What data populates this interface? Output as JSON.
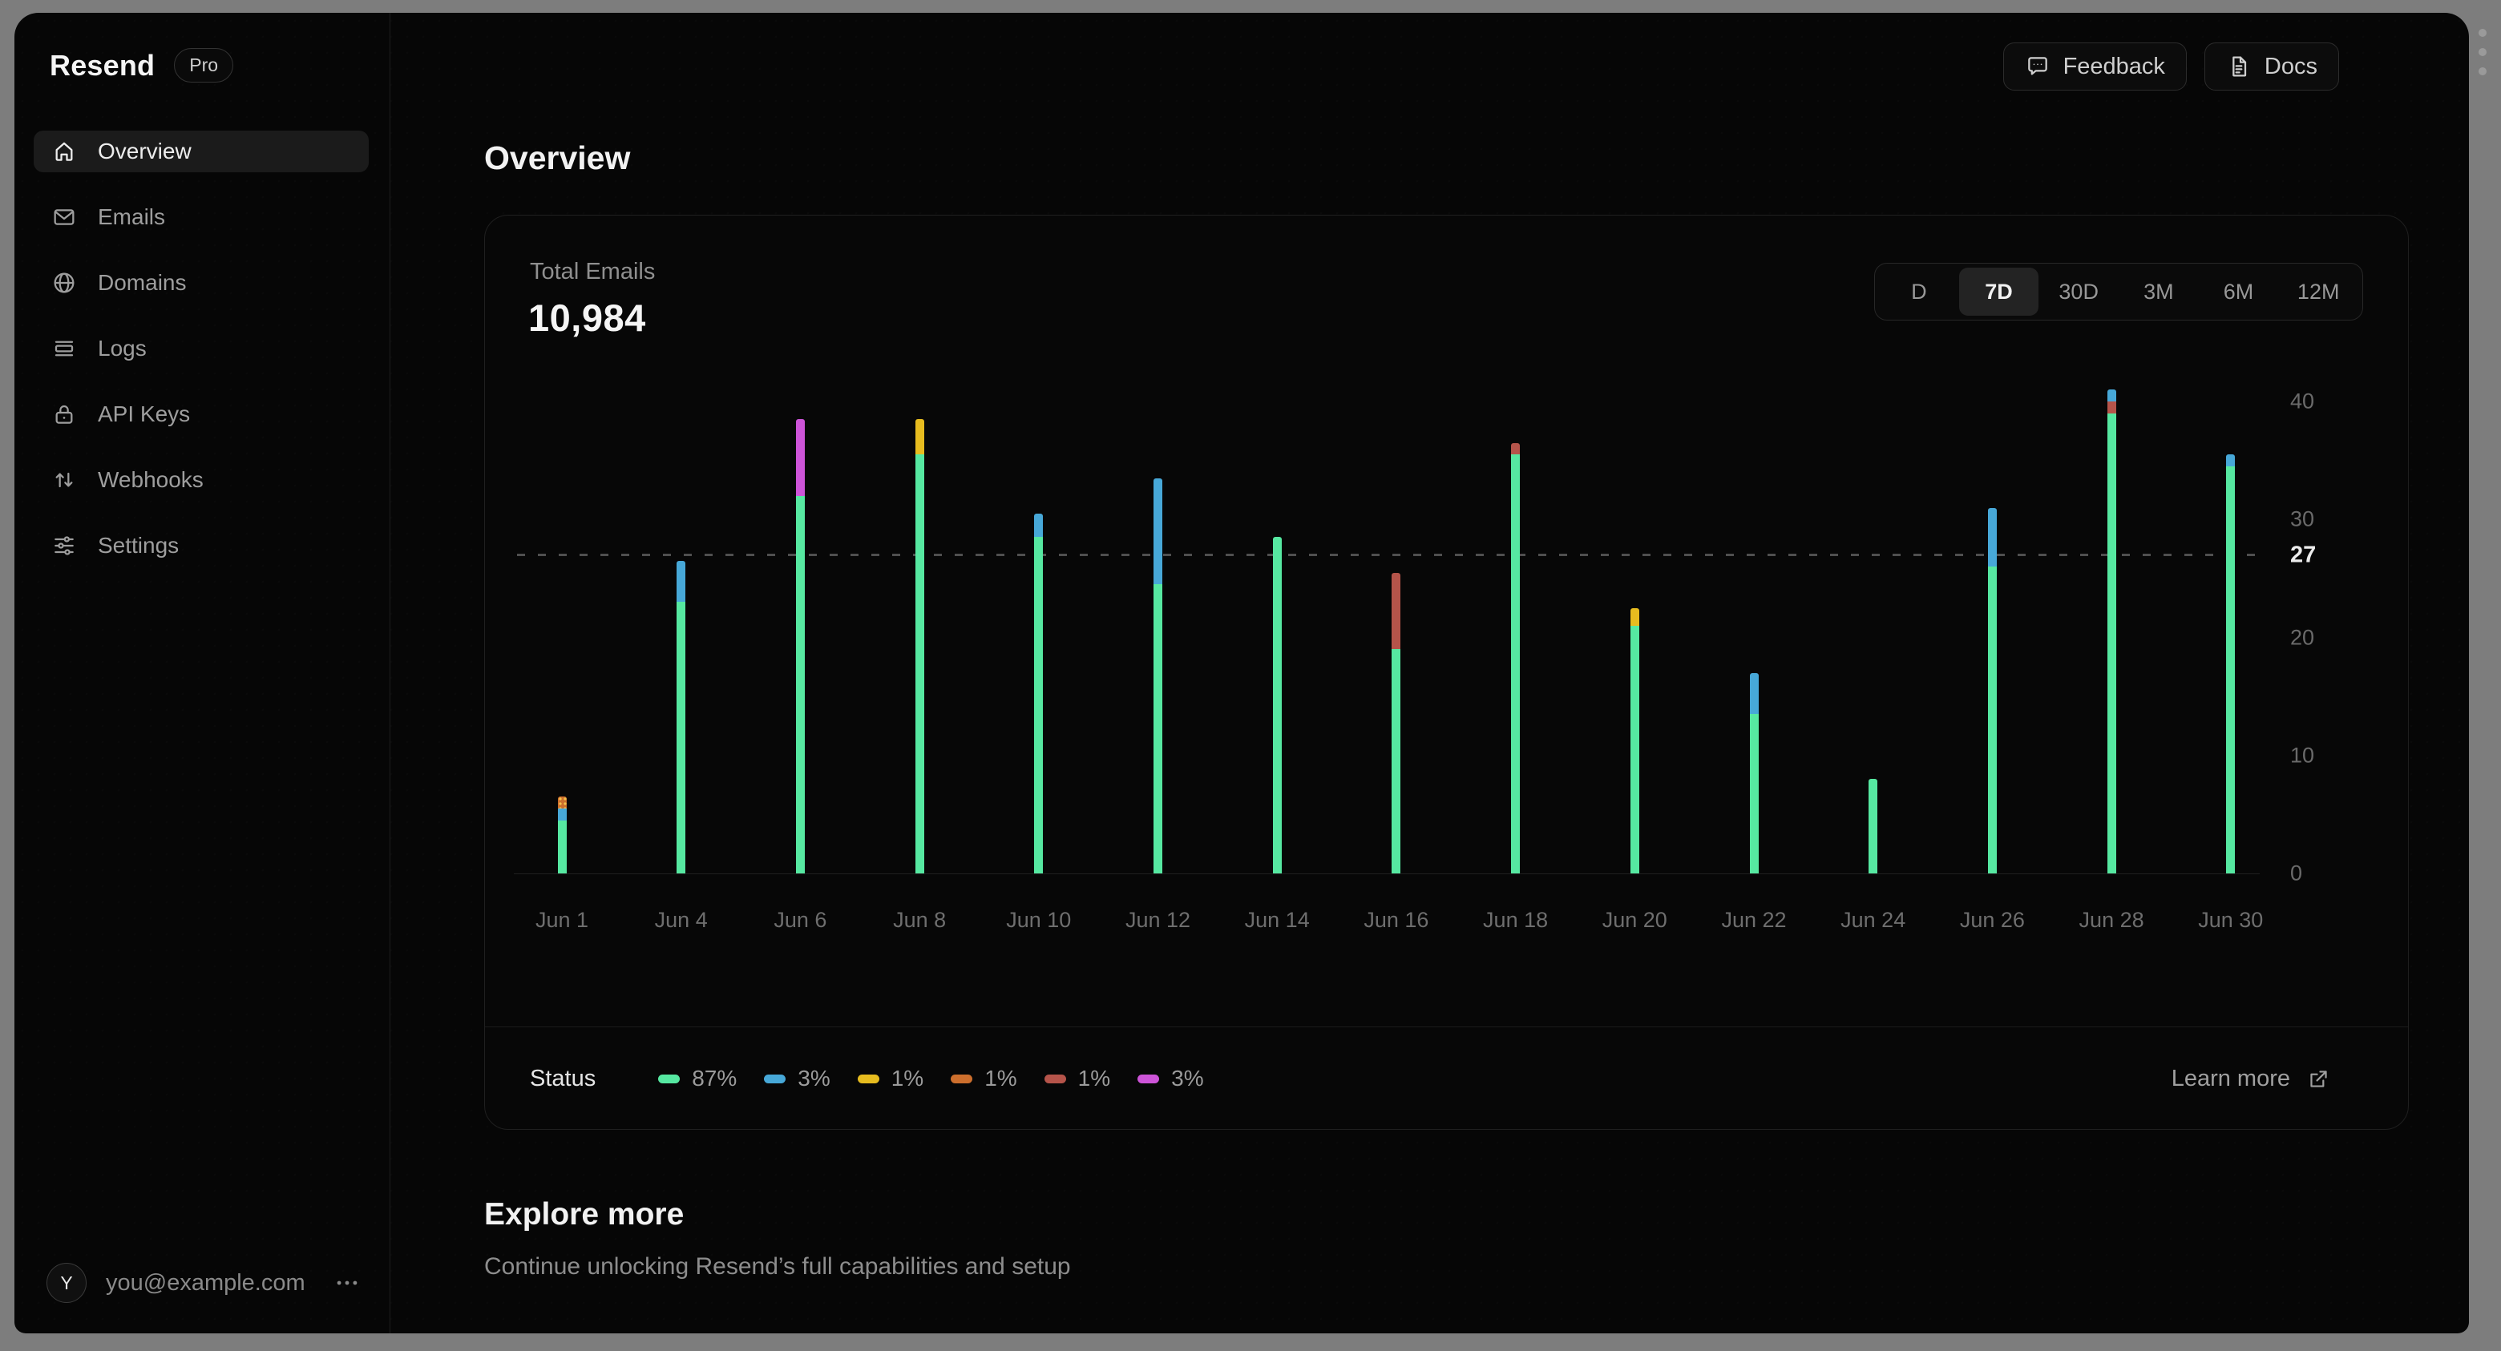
{
  "sidebar": {
    "logo": "Resend",
    "plan_badge": "Pro",
    "items": [
      {
        "id": "overview",
        "label": "Overview",
        "icon": "home-icon",
        "active": true
      },
      {
        "id": "emails",
        "label": "Emails",
        "icon": "mail-icon",
        "active": false
      },
      {
        "id": "domains",
        "label": "Domains",
        "icon": "globe-icon",
        "active": false
      },
      {
        "id": "logs",
        "label": "Logs",
        "icon": "logs-icon",
        "active": false
      },
      {
        "id": "api-keys",
        "label": "API Keys",
        "icon": "lock-icon",
        "active": false
      },
      {
        "id": "webhooks",
        "label": "Webhooks",
        "icon": "arrows-up-down-icon",
        "active": false
      },
      {
        "id": "settings",
        "label": "Settings",
        "icon": "sliders-icon",
        "active": false
      }
    ],
    "user": {
      "initial": "Y",
      "email": "you@example.com",
      "menu_icon": "ellipsis-icon"
    }
  },
  "header": {
    "feedback_label": "Feedback",
    "feedback_icon": "chat-bubble-icon",
    "docs_label": "Docs",
    "docs_icon": "document-icon"
  },
  "page": {
    "title": "Overview",
    "explore_title": "Explore more",
    "explore_subtitle": "Continue unlocking Resend’s full capabilities and setup"
  },
  "card": {
    "metric_label": "Total Emails",
    "metric_value": "10,984",
    "ranges": [
      {
        "label": "D",
        "active": false
      },
      {
        "label": "7D",
        "active": true
      },
      {
        "label": "30D",
        "active": false
      },
      {
        "label": "3M",
        "active": false
      },
      {
        "label": "6M",
        "active": false
      },
      {
        "label": "12M",
        "active": false
      }
    ],
    "legend_title": "Status",
    "learn_more_label": "Learn more",
    "learn_more_icon": "external-link-icon"
  },
  "chart_data": {
    "type": "bar",
    "stacked": true,
    "title": "Total Emails",
    "xlabel": "",
    "ylabel": "",
    "ylim": [
      0,
      40
    ],
    "yticks": [
      0,
      10,
      20,
      30,
      40
    ],
    "reference_line": {
      "value": 27,
      "label": "27"
    },
    "grid": false,
    "legend_position": "bottom",
    "colors": {
      "green": "#56e8a1",
      "blue": "#47a8d8",
      "yellow": "#e7bc1f",
      "orange": "#cd6f2d",
      "red": "#b5544a",
      "purple": "#cd54d8"
    },
    "legend": [
      {
        "color": "green",
        "pct": "87%",
        "dotted": false
      },
      {
        "color": "blue",
        "pct": "3%",
        "dotted": false
      },
      {
        "color": "yellow",
        "pct": "1%",
        "dotted": false
      },
      {
        "color": "orange",
        "pct": "1%",
        "dotted": true
      },
      {
        "color": "red",
        "pct": "1%",
        "dotted": false
      },
      {
        "color": "purple",
        "pct": "3%",
        "dotted": false
      }
    ],
    "categories": [
      "Jun 1",
      "Jun 4",
      "Jun 6",
      "Jun 8",
      "Jun 10",
      "Jun 12",
      "Jun 14",
      "Jun 16",
      "Jun 18",
      "Jun 20",
      "Jun 22",
      "Jun 24",
      "Jun 26",
      "Jun 28",
      "Jun 30"
    ],
    "bars": [
      {
        "label": "Jun 1",
        "segments": [
          {
            "color": "green",
            "value": 4.5
          },
          {
            "color": "blue",
            "value": 1
          },
          {
            "color": "orange",
            "value": 1,
            "dotted": true
          }
        ]
      },
      {
        "label": "Jun 4",
        "segments": [
          {
            "color": "green",
            "value": 23
          },
          {
            "color": "blue",
            "value": 3.5
          }
        ]
      },
      {
        "label": "Jun 6",
        "segments": [
          {
            "color": "green",
            "value": 32
          },
          {
            "color": "purple",
            "value": 6.5
          }
        ]
      },
      {
        "label": "Jun 8",
        "segments": [
          {
            "color": "green",
            "value": 35.5
          },
          {
            "color": "yellow",
            "value": 3
          }
        ]
      },
      {
        "label": "Jun 10",
        "segments": [
          {
            "color": "green",
            "value": 28.5
          },
          {
            "color": "blue",
            "value": 2
          }
        ]
      },
      {
        "label": "Jun 12",
        "segments": [
          {
            "color": "green",
            "value": 24.5
          },
          {
            "color": "blue",
            "value": 9
          }
        ]
      },
      {
        "label": "Jun 14",
        "segments": [
          {
            "color": "green",
            "value": 28.5
          }
        ]
      },
      {
        "label": "Jun 16",
        "segments": [
          {
            "color": "green",
            "value": 19
          },
          {
            "color": "red",
            "value": 6.5
          }
        ]
      },
      {
        "label": "Jun 18",
        "segments": [
          {
            "color": "green",
            "value": 35.5
          },
          {
            "color": "red",
            "value": 1
          }
        ]
      },
      {
        "label": "Jun 20",
        "segments": [
          {
            "color": "green",
            "value": 21
          },
          {
            "color": "yellow",
            "value": 1.5
          }
        ]
      },
      {
        "label": "Jun 22",
        "segments": [
          {
            "color": "green",
            "value": 13.5
          },
          {
            "color": "blue",
            "value": 3.5
          }
        ]
      },
      {
        "label": "Jun 24",
        "segments": [
          {
            "color": "green",
            "value": 8
          }
        ]
      },
      {
        "label": "Jun 26",
        "segments": [
          {
            "color": "green",
            "value": 26
          },
          {
            "color": "blue",
            "value": 5
          }
        ]
      },
      {
        "label": "Jun 28",
        "segments": [
          {
            "color": "green",
            "value": 39
          },
          {
            "color": "red",
            "value": 1
          },
          {
            "color": "blue",
            "value": 1
          }
        ]
      },
      {
        "label": "Jun 30",
        "segments": [
          {
            "color": "green",
            "value": 34.5
          },
          {
            "color": "blue",
            "value": 1
          }
        ]
      }
    ]
  }
}
